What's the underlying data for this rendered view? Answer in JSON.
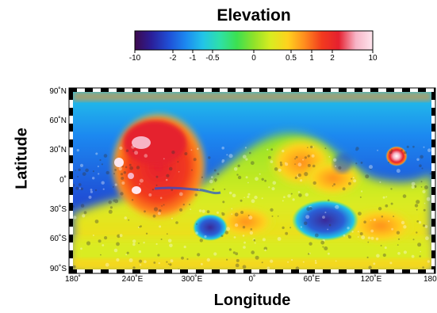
{
  "colorbar": {
    "title": "Elevation",
    "tick_labels": [
      "-10",
      "-2",
      "-1",
      "-0.5",
      "0",
      "0.5",
      "1",
      "2",
      "10"
    ],
    "colors": [
      "#3d0a4e",
      "#2a1f9a",
      "#1f4fd6",
      "#1c88f0",
      "#22c4e8",
      "#2ee0a8",
      "#3ce050",
      "#8fe22a",
      "#d9ec20",
      "#ffd21e",
      "#ff8c1e",
      "#f23a1e",
      "#e5202f",
      "#f7b4c6",
      "#ffe6ee"
    ]
  },
  "map": {
    "latitude_labels": [
      "90˚N",
      "60˚N",
      "30˚N",
      "0˚",
      "30˚S",
      "60˚S",
      "90˚S"
    ],
    "longitude_labels": [
      "180˚",
      "240˚E",
      "300˚E",
      "0˚",
      "60˚E",
      "120˚E",
      "180˚"
    ],
    "x_axis_title": "Longitude",
    "y_axis_title": "Latitude"
  }
}
